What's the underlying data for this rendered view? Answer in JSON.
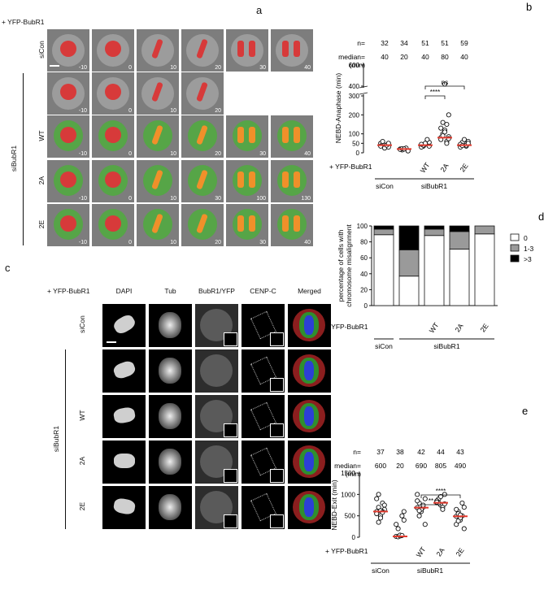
{
  "panel_a": {
    "letter": "a",
    "construct_label": "+ YFP-BubR1",
    "group_label": "siBubR1",
    "rows": [
      {
        "label": "siCon",
        "times": [
          "-10",
          "0",
          "10",
          "20",
          "30",
          "40"
        ]
      },
      {
        "label": "",
        "times": [
          "-10",
          "0",
          "10",
          "20"
        ]
      },
      {
        "label": "WT",
        "times": [
          "-10",
          "0",
          "10",
          "20",
          "30",
          "40"
        ]
      },
      {
        "label": "2A",
        "times": [
          "-10",
          "0",
          "10",
          "30",
          "100",
          "130"
        ]
      },
      {
        "label": "2E",
        "times": [
          "-10",
          "0",
          "10",
          "20",
          "30",
          "40"
        ]
      }
    ]
  },
  "panel_c": {
    "letter": "c",
    "construct_label": "+ YFP-BubR1",
    "columns": [
      "DAPI",
      "Tub",
      "BubR1/YFP",
      "CENP-C",
      "Merged"
    ],
    "group_label": "siBubR1",
    "rows": [
      "siCon",
      "",
      "WT",
      "2A",
      "2E"
    ]
  },
  "chart_data": [
    {
      "panel": "b",
      "type": "scatter",
      "ylabel": "NEBD-Anaphase (min)",
      "n_label": "n=",
      "median_label": "median=",
      "median_unit": "(min)",
      "categories": [
        "siCon",
        "siBubR1",
        "WT",
        "2A",
        "2E"
      ],
      "x_tick_labels": [
        "",
        "",
        "WT",
        "2A",
        "2E"
      ],
      "n": [
        "32",
        "34",
        "51",
        "51",
        "59"
      ],
      "median": [
        "40",
        "20",
        "40",
        "80",
        "40"
      ],
      "y_ticks": [
        0,
        50,
        100,
        200,
        300,
        400,
        600
      ],
      "y_axis_break": [
        300,
        400
      ],
      "significance": [
        {
          "from": "WT",
          "to": "2A",
          "label": "****"
        },
        {
          "from": "WT",
          "to": "2E",
          "label": "ns"
        }
      ],
      "bottom_row_label": "+ YFP-BubR1",
      "group_labels": [
        "siCon",
        "siBubR1"
      ],
      "median_color": "#e23a2e",
      "points": [
        [
          50,
          45,
          40,
          40,
          30,
          35,
          60,
          25,
          40,
          50
        ],
        [
          20,
          15,
          20,
          25,
          10,
          18,
          22,
          20
        ],
        [
          40,
          35,
          45,
          60,
          55,
          30,
          40,
          50,
          70,
          35,
          45
        ],
        [
          80,
          100,
          120,
          150,
          200,
          70,
          90,
          110,
          60,
          85,
          130,
          160,
          420,
          50,
          75
        ],
        [
          40,
          45,
          50,
          35,
          60,
          30,
          55,
          70,
          40,
          50,
          45,
          38
        ]
      ]
    },
    {
      "panel": "d",
      "type": "bar",
      "stacked": true,
      "ylabel": "percentage of cells with chromosome misalignment",
      "categories": [
        "siCon",
        "siBubR1",
        "WT",
        "2A",
        "2E"
      ],
      "x_tick_labels": [
        "",
        "",
        "WT",
        "2A",
        "2E"
      ],
      "ylim": [
        0,
        100
      ],
      "y_ticks": [
        0,
        20,
        40,
        60,
        80,
        100
      ],
      "series": [
        {
          "name": "0",
          "color": "#ffffff",
          "values": [
            89,
            37,
            88,
            71,
            90
          ]
        },
        {
          "name": "1-3",
          "color": "#9a9a9a",
          "values": [
            7,
            33,
            8,
            22,
            10
          ]
        },
        {
          "name": ">3",
          "color": "#000000",
          "values": [
            4,
            30,
            4,
            7,
            0
          ]
        }
      ],
      "legend_placement": "right",
      "bottom_row_label": "+ YFP-BubR1",
      "group_labels": [
        "siCon",
        "siBubR1"
      ]
    },
    {
      "panel": "e",
      "type": "scatter",
      "ylabel": "NEBD-Exit (min)",
      "n_label": "n=",
      "median_label": "median=",
      "median_unit": "(min)",
      "categories": [
        "siCon",
        "siBubR1",
        "WT",
        "2A",
        "2E"
      ],
      "x_tick_labels": [
        "",
        "",
        "WT",
        "2A",
        "2E"
      ],
      "n": [
        "37",
        "38",
        "42",
        "44",
        "43"
      ],
      "median": [
        "600",
        "20",
        "690",
        "805",
        "490"
      ],
      "ylim": [
        0,
        1500
      ],
      "y_ticks": [
        0,
        500,
        1000,
        1500
      ],
      "significance": [
        {
          "from": "WT",
          "to": "2A",
          "label": "**"
        },
        {
          "from": "WT",
          "to": "2E",
          "label": "****"
        }
      ],
      "bottom_row_label": "+ YFP-BubR1",
      "group_labels": [
        "siCon",
        "siBubR1"
      ],
      "median_color": "#e23a2e",
      "points": [
        [
          600,
          700,
          500,
          800,
          650,
          550,
          1000,
          450,
          600,
          750,
          900,
          350,
          620,
          580
        ],
        [
          20,
          10,
          30,
          500,
          600,
          300,
          200,
          50,
          40,
          400
        ],
        [
          690,
          800,
          600,
          700,
          900,
          1000,
          500,
          650,
          750,
          300,
          850,
          620
        ],
        [
          805,
          900,
          750,
          700,
          1000,
          850,
          800,
          950,
          650,
          780,
          820
        ],
        [
          490,
          600,
          400,
          500,
          700,
          300,
          550,
          450,
          800,
          200,
          650,
          380,
          520
        ]
      ]
    }
  ],
  "colors": {
    "accent_red": "#e23a2e",
    "chromatin_red": "#d73a3a",
    "yfp_green": "#4caf3a"
  }
}
